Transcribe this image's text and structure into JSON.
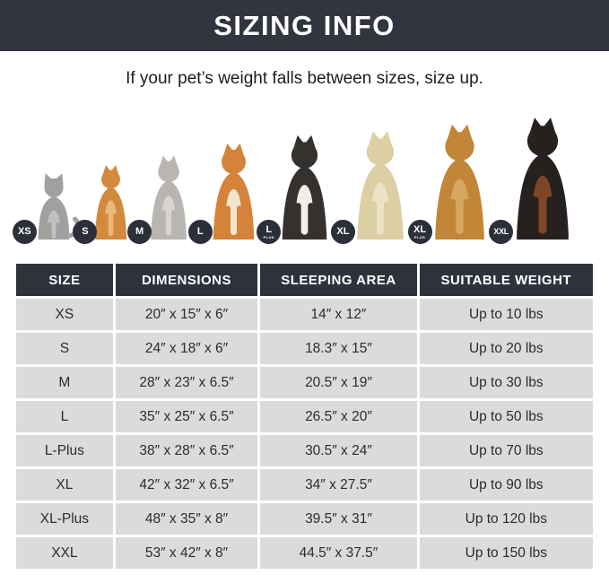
{
  "banner": {
    "title": "SIZING INFO"
  },
  "subtitle": "If your pet’s weight falls between sizes, size up.",
  "pets": [
    {
      "badge": "XS",
      "sub": "",
      "breed": "cat",
      "body": "#a2a09e",
      "chest": "#c2c0be",
      "height": 78
    },
    {
      "badge": "S",
      "sub": "",
      "breed": "pomeranian",
      "body": "#d28a3e",
      "chest": "#e9b87b",
      "height": 86
    },
    {
      "badge": "M",
      "sub": "",
      "breed": "french-bulldog",
      "body": "#b9b5b1",
      "chest": "#d8d4d0",
      "height": 96
    },
    {
      "badge": "L",
      "sub": "",
      "breed": "shiba-inu",
      "body": "#d5823a",
      "chest": "#f3e4cd",
      "height": 110
    },
    {
      "badge": "L",
      "sub": "PLUS",
      "breed": "border-collie",
      "body": "#34312f",
      "chest": "#efeeec",
      "height": 120
    },
    {
      "badge": "XL",
      "sub": "",
      "breed": "labrador",
      "body": "#ddcfa4",
      "chest": "#ece2c6",
      "height": 124
    },
    {
      "badge": "XL",
      "sub": "PLUS",
      "breed": "golden-retriever",
      "body": "#c28639",
      "chest": "#d6a75f",
      "height": 132
    },
    {
      "badge": "XXL",
      "sub": "",
      "breed": "doberman",
      "body": "#26211e",
      "chest": "#7e4526",
      "height": 140
    }
  ],
  "chart_data": {
    "type": "table",
    "title": "SIZING INFO",
    "columns": [
      "SIZE",
      "DIMENSIONS",
      "SLEEPING AREA",
      "SUITABLE WEIGHT"
    ],
    "rows": [
      [
        "XS",
        "20″ x 15″ x 6″",
        "14″ x 12″",
        "Up to 10 lbs"
      ],
      [
        "S",
        "24″ x 18″ x 6″",
        "18.3″ x 15″",
        "Up to 20 lbs"
      ],
      [
        "M",
        "28″ x 23″ x 6.5″",
        "20.5″ x 19″",
        "Up to 30 lbs"
      ],
      [
        "L",
        "35″ x 25″ x 6.5″",
        "26.5″ x 20″",
        "Up to 50 lbs"
      ],
      [
        "L-Plus",
        "38″ x 28″ x 6.5″",
        "30.5″ x 24″",
        "Up to 70 lbs"
      ],
      [
        "XL",
        "42″ x 32″ x 6.5″",
        "34″ x 27.5″",
        "Up to 90 lbs"
      ],
      [
        "XL-Plus",
        "48″ x 35″ x 8″",
        "39.5″ x 31″",
        "Up to 120 lbs"
      ],
      [
        "XXL",
        "53″ x 42″ x 8″",
        "44.5″ x 37.5″",
        "Up to 150 lbs"
      ]
    ]
  },
  "colors": {
    "banner_bg": "#32353f",
    "table_header_bg": "#2f323c",
    "row_bg": "#dbdbdd",
    "badge_bg": "#2c2f39",
    "text": "#2c2c2c"
  }
}
